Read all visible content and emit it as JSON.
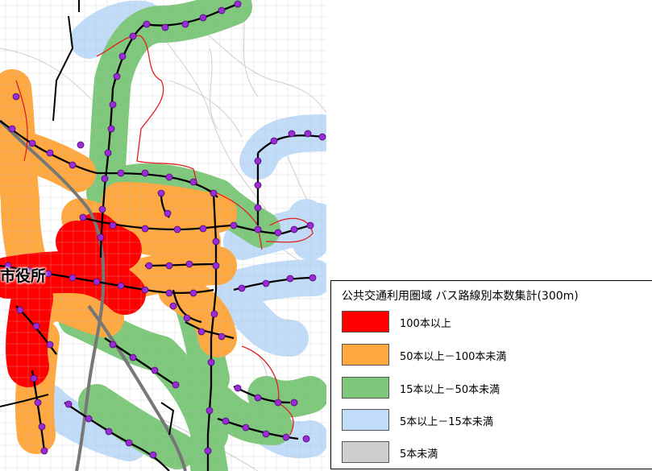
{
  "map": {
    "city_hall_label": "市役所"
  },
  "legend": {
    "title": "公共交通利用圏域 バス路線別本数集計(300m)",
    "items": [
      {
        "label": "100本以上",
        "color": "#ff0000"
      },
      {
        "label": "50本以上－100本未満",
        "color": "#ffa840"
      },
      {
        "label": "15本以上－50本未満",
        "color": "#7dc87a"
      },
      {
        "label": "5本以上－15本未満",
        "color": "#c0dcf8"
      },
      {
        "label": "5本未満",
        "color": "#cfcfcf"
      }
    ]
  },
  "colors": {
    "bus_route": "#000000",
    "bus_stop": "#9a2bd6",
    "district_boundary": "#e02020",
    "rail": "#777777"
  }
}
